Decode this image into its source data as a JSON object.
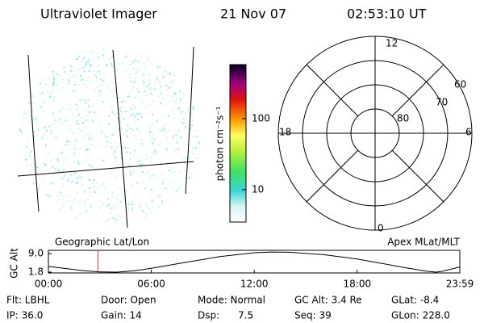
{
  "header": {
    "title": "Ultraviolet Imager",
    "date": "21 Nov 07",
    "time": "02:53:10 UT"
  },
  "colorbar": {
    "label": "photon cm⁻²s⁻¹",
    "scale": "log",
    "lim": [
      3.5,
      575
    ],
    "ticks": [
      10,
      100
    ]
  },
  "polar": {
    "mlt_labels": {
      "top": "12",
      "right": "6",
      "bottom": "0",
      "left": "18"
    },
    "lat_labels": [
      "60",
      "70",
      "80"
    ]
  },
  "altitude_plot": {
    "left_title": "Geographic Lat/Lon",
    "right_title": "Apex MLat/MLT",
    "ylabel": "GC Alt",
    "ylim": [
      1.8,
      9
    ],
    "yticks": [
      {
        "value": 9,
        "label": "9.0"
      },
      1.8
    ],
    "xlim": [
      0,
      23.98
    ],
    "xticks": [
      {
        "value": 0,
        "label": "00:00"
      },
      {
        "value": 6,
        "label": "06:00"
      },
      {
        "value": 12,
        "label": "12:00"
      },
      {
        "value": 18,
        "label": "18:00"
      },
      {
        "value": 23.98,
        "label": "23:59"
      }
    ],
    "hours": [
      0,
      1,
      2,
      3,
      4,
      5,
      6,
      8,
      10,
      12,
      13,
      14,
      16,
      18,
      20,
      21,
      22,
      22.6,
      23,
      23.98
    ],
    "alt": [
      4.0,
      3.2,
      2.4,
      1.9,
      1.8,
      2.3,
      3.3,
      5.6,
      7.8,
      9.3,
      9.6,
      9.5,
      8.6,
      6.9,
      4.5,
      3.3,
      2.2,
      1.8,
      2.2,
      3.8
    ],
    "marker_hours": 2.886,
    "marker_color": "#d03030"
  },
  "info": {
    "rows": [
      [
        "Flt: LBHL",
        "Door: Open",
        "Mode: Normal",
        "GC Alt: 3.4 Re",
        "GLat: -8.4"
      ],
      [
        "IP: 36.0",
        "Gain: 14",
        "Dsp:      7.5",
        "Seq: 39",
        "GLon: 228.0"
      ]
    ]
  }
}
